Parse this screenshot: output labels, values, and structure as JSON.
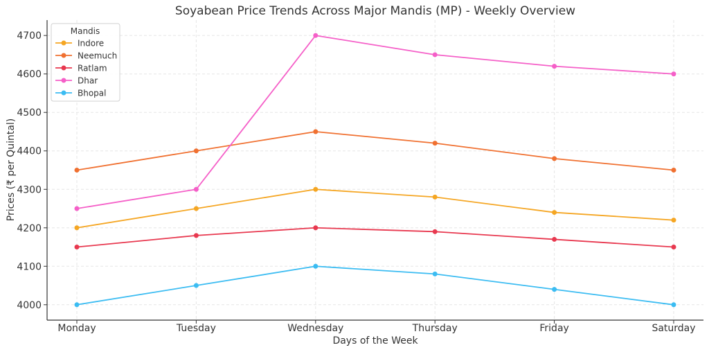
{
  "chart_data": {
    "type": "line",
    "title": "Soyabean Price Trends Across Major Mandis (MP) - Weekly Overview",
    "xlabel": "Days of the Week",
    "ylabel": "Prices (₹ per Quintal)",
    "categories": [
      "Monday",
      "Tuesday",
      "Wednesday",
      "Thursday",
      "Friday",
      "Saturday"
    ],
    "ylim": [
      3960,
      4740
    ],
    "yticks": [
      4000,
      4100,
      4200,
      4300,
      4400,
      4500,
      4600,
      4700
    ],
    "grid": true,
    "legend": {
      "title": "Mandis",
      "placement": "top-left"
    },
    "series": [
      {
        "name": "Indore",
        "color": "#f5a623",
        "values": [
          4200,
          4250,
          4300,
          4280,
          4240,
          4220
        ]
      },
      {
        "name": "Neemuch",
        "color": "#f07030",
        "values": [
          4350,
          4400,
          4450,
          4420,
          4380,
          4350
        ]
      },
      {
        "name": "Ratlam",
        "color": "#e8384f",
        "values": [
          4150,
          4180,
          4200,
          4190,
          4170,
          4150
        ]
      },
      {
        "name": "Dhar",
        "color": "#f55fc8",
        "values": [
          4250,
          4300,
          4700,
          4650,
          4620,
          4600
        ]
      },
      {
        "name": "Bhopal",
        "color": "#3bbcf2",
        "values": [
          4000,
          4050,
          4100,
          4080,
          4040,
          4000
        ]
      }
    ]
  }
}
